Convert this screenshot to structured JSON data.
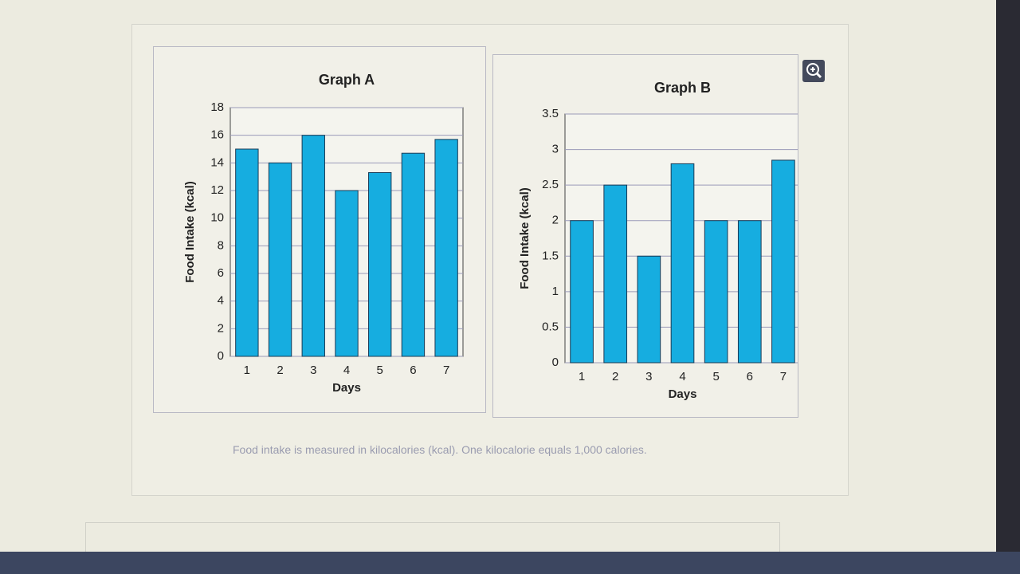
{
  "chart_data": [
    {
      "type": "bar",
      "title": "Graph A",
      "x_label": "Days",
      "y_label": "Food Intake (kcal)",
      "categories": [
        "1",
        "2",
        "3",
        "4",
        "5",
        "6",
        "7"
      ],
      "values": [
        15,
        14,
        16,
        12,
        13.3,
        14.7,
        15.7
      ],
      "color": "#16ade0",
      "ylim": [
        0,
        18
      ],
      "yticks": [
        0,
        2,
        4,
        6,
        8,
        10,
        12,
        14,
        16,
        18
      ],
      "grid": true
    },
    {
      "type": "bar",
      "title": "Graph B",
      "x_label": "Days",
      "y_label": "Food Intake (kcal)",
      "categories": [
        "1",
        "2",
        "3",
        "4",
        "5",
        "6",
        "7"
      ],
      "values": [
        2,
        2.5,
        1.5,
        2.8,
        2,
        2,
        2.85
      ],
      "color": "#16ade0",
      "ylim": [
        0,
        3.5
      ],
      "yticks": [
        0,
        0.5,
        1,
        1.5,
        2,
        2.5,
        3,
        3.5
      ],
      "grid": true
    }
  ],
  "caption": "Food intake is measured in kilocalories (kcal). One kilocalorie equals 1,000 calories."
}
